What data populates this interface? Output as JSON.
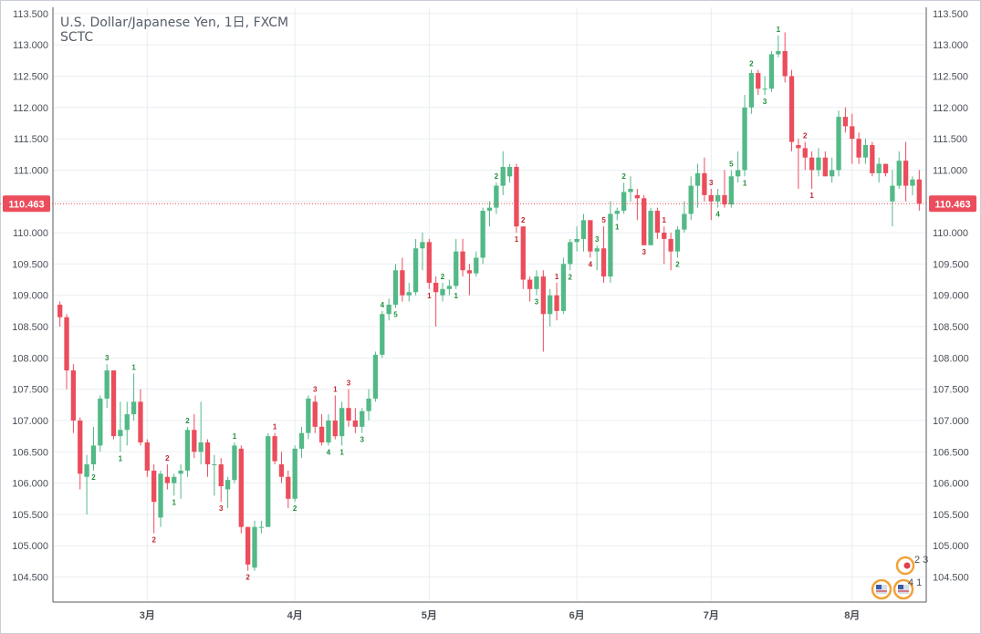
{
  "header": {
    "title": "U.S. Dollar/Japanese Yen, 1日, FXCM",
    "subtitle": "SCTC"
  },
  "colors": {
    "up": "#53b987",
    "down": "#eb4d5c",
    "grid": "#e9edf1",
    "axis": "#555a62",
    "last": "#eb4d5c"
  },
  "chart_data": {
    "type": "candlestick",
    "ylim": [
      104.1,
      113.6
    ],
    "yticks": [
      "104.500",
      "105.000",
      "105.500",
      "106.000",
      "106.500",
      "107.000",
      "107.500",
      "108.000",
      "108.500",
      "109.000",
      "109.500",
      "110.000",
      "110.500",
      "111.000",
      "111.500",
      "112.000",
      "112.500",
      "113.000",
      "113.500"
    ],
    "xticks": [
      {
        "label": "3月",
        "index": 13
      },
      {
        "label": "4月",
        "index": 35
      },
      {
        "label": "5月",
        "index": 55
      },
      {
        "label": "6月",
        "index": 77
      },
      {
        "label": "7月",
        "index": 97
      },
      {
        "label": "8月",
        "index": 118
      }
    ],
    "last_price": "110.463",
    "candles": [
      {
        "o": 108.85,
        "h": 108.9,
        "l": 108.5,
        "c": 108.65
      },
      {
        "o": 108.65,
        "h": 108.7,
        "l": 107.5,
        "c": 107.8
      },
      {
        "o": 107.8,
        "h": 107.9,
        "l": 106.8,
        "c": 107.0
      },
      {
        "o": 107.0,
        "h": 107.05,
        "l": 105.9,
        "c": 106.15
      },
      {
        "o": 106.1,
        "h": 106.45,
        "l": 105.5,
        "c": 106.3
      },
      {
        "o": 106.3,
        "h": 106.9,
        "l": 106.2,
        "c": 106.6
      },
      {
        "o": 106.6,
        "h": 107.4,
        "l": 106.5,
        "c": 107.35
      },
      {
        "o": 107.35,
        "h": 107.9,
        "l": 107.2,
        "c": 107.8
      },
      {
        "o": 107.8,
        "h": 107.8,
        "l": 106.7,
        "c": 106.75
      },
      {
        "o": 106.75,
        "h": 107.3,
        "l": 106.5,
        "c": 106.85
      },
      {
        "o": 106.85,
        "h": 107.3,
        "l": 106.6,
        "c": 107.1
      },
      {
        "o": 107.1,
        "h": 107.75,
        "l": 107.0,
        "c": 107.3
      },
      {
        "o": 107.3,
        "h": 107.5,
        "l": 106.6,
        "c": 106.65
      },
      {
        "o": 106.65,
        "h": 106.7,
        "l": 106.1,
        "c": 106.2
      },
      {
        "o": 106.2,
        "h": 106.3,
        "l": 105.2,
        "c": 105.7
      },
      {
        "o": 105.45,
        "h": 106.2,
        "l": 105.3,
        "c": 106.15
      },
      {
        "o": 106.1,
        "h": 106.3,
        "l": 105.9,
        "c": 106.0
      },
      {
        "o": 106.0,
        "h": 106.15,
        "l": 105.8,
        "c": 106.1
      },
      {
        "o": 106.15,
        "h": 106.3,
        "l": 105.75,
        "c": 106.2
      },
      {
        "o": 106.2,
        "h": 106.9,
        "l": 106.1,
        "c": 106.85
      },
      {
        "o": 106.85,
        "h": 107.1,
        "l": 106.4,
        "c": 106.5
      },
      {
        "o": 106.5,
        "h": 107.3,
        "l": 106.3,
        "c": 106.65
      },
      {
        "o": 106.65,
        "h": 106.7,
        "l": 106.1,
        "c": 106.3
      },
      {
        "o": 106.3,
        "h": 106.45,
        "l": 105.8,
        "c": 106.3
      },
      {
        "o": 106.3,
        "h": 106.4,
        "l": 105.7,
        "c": 105.95
      },
      {
        "o": 105.9,
        "h": 106.1,
        "l": 105.6,
        "c": 106.05
      },
      {
        "o": 106.05,
        "h": 106.65,
        "l": 106.0,
        "c": 106.6
      },
      {
        "o": 106.55,
        "h": 106.6,
        "l": 105.2,
        "c": 105.3
      },
      {
        "o": 105.3,
        "h": 105.3,
        "l": 104.6,
        "c": 104.7
      },
      {
        "o": 104.65,
        "h": 105.4,
        "l": 104.6,
        "c": 105.3
      },
      {
        "o": 105.3,
        "h": 105.4,
        "l": 105.2,
        "c": 105.3
      },
      {
        "o": 105.3,
        "h": 106.8,
        "l": 105.3,
        "c": 106.75
      },
      {
        "o": 106.75,
        "h": 106.8,
        "l": 106.3,
        "c": 106.35
      },
      {
        "o": 106.3,
        "h": 106.5,
        "l": 106.0,
        "c": 106.1
      },
      {
        "o": 106.1,
        "h": 106.2,
        "l": 105.6,
        "c": 105.75
      },
      {
        "o": 105.75,
        "h": 106.6,
        "l": 105.7,
        "c": 106.55
      },
      {
        "o": 106.55,
        "h": 106.9,
        "l": 106.4,
        "c": 106.8
      },
      {
        "o": 106.8,
        "h": 107.4,
        "l": 106.7,
        "c": 107.35
      },
      {
        "o": 107.3,
        "h": 107.4,
        "l": 106.8,
        "c": 106.9
      },
      {
        "o": 106.9,
        "h": 107.1,
        "l": 106.6,
        "c": 106.65
      },
      {
        "o": 106.65,
        "h": 107.1,
        "l": 106.6,
        "c": 107.0
      },
      {
        "o": 107.0,
        "h": 107.4,
        "l": 106.7,
        "c": 106.75
      },
      {
        "o": 106.75,
        "h": 107.3,
        "l": 106.6,
        "c": 107.2
      },
      {
        "o": 107.2,
        "h": 107.5,
        "l": 106.9,
        "c": 107.0
      },
      {
        "o": 107.0,
        "h": 107.2,
        "l": 106.8,
        "c": 106.9
      },
      {
        "o": 106.9,
        "h": 107.2,
        "l": 106.8,
        "c": 107.15
      },
      {
        "o": 107.15,
        "h": 107.5,
        "l": 107.0,
        "c": 107.35
      },
      {
        "o": 107.35,
        "h": 108.1,
        "l": 107.3,
        "c": 108.05
      },
      {
        "o": 108.05,
        "h": 108.75,
        "l": 108.0,
        "c": 108.7
      },
      {
        "o": 108.7,
        "h": 108.95,
        "l": 108.6,
        "c": 108.85
      },
      {
        "o": 108.85,
        "h": 109.5,
        "l": 108.8,
        "c": 109.4
      },
      {
        "o": 109.4,
        "h": 109.6,
        "l": 108.9,
        "c": 109.0
      },
      {
        "o": 109.0,
        "h": 109.2,
        "l": 108.9,
        "c": 109.05
      },
      {
        "o": 109.05,
        "h": 109.9,
        "l": 109.0,
        "c": 109.75
      },
      {
        "o": 109.75,
        "h": 110.0,
        "l": 109.4,
        "c": 109.85
      },
      {
        "o": 109.85,
        "h": 109.9,
        "l": 109.1,
        "c": 109.2
      },
      {
        "o": 109.2,
        "h": 109.3,
        "l": 108.5,
        "c": 109.05
      },
      {
        "o": 109.0,
        "h": 109.2,
        "l": 108.9,
        "c": 109.1
      },
      {
        "o": 109.1,
        "h": 109.25,
        "l": 109.0,
        "c": 109.15
      },
      {
        "o": 109.15,
        "h": 109.9,
        "l": 109.1,
        "c": 109.7
      },
      {
        "o": 109.7,
        "h": 109.9,
        "l": 109.3,
        "c": 109.4
      },
      {
        "o": 109.4,
        "h": 109.5,
        "l": 109.0,
        "c": 109.35
      },
      {
        "o": 109.35,
        "h": 109.7,
        "l": 109.3,
        "c": 109.6
      },
      {
        "o": 109.6,
        "h": 110.4,
        "l": 109.5,
        "c": 110.35
      },
      {
        "o": 110.35,
        "h": 110.5,
        "l": 110.1,
        "c": 110.4
      },
      {
        "o": 110.4,
        "h": 110.8,
        "l": 110.3,
        "c": 110.75
      },
      {
        "o": 110.75,
        "h": 111.3,
        "l": 110.6,
        "c": 111.05
      },
      {
        "o": 110.9,
        "h": 111.1,
        "l": 110.8,
        "c": 111.05
      },
      {
        "o": 111.05,
        "h": 111.1,
        "l": 110.0,
        "c": 110.1
      },
      {
        "o": 110.1,
        "h": 110.1,
        "l": 109.1,
        "c": 109.25
      },
      {
        "o": 109.25,
        "h": 109.3,
        "l": 108.9,
        "c": 109.1
      },
      {
        "o": 109.1,
        "h": 109.4,
        "l": 109.0,
        "c": 109.3
      },
      {
        "o": 109.3,
        "h": 109.4,
        "l": 108.1,
        "c": 108.7
      },
      {
        "o": 108.7,
        "h": 109.1,
        "l": 108.5,
        "c": 109.0
      },
      {
        "o": 109.0,
        "h": 109.2,
        "l": 108.6,
        "c": 108.75
      },
      {
        "o": 108.75,
        "h": 109.6,
        "l": 108.7,
        "c": 109.5
      },
      {
        "o": 109.5,
        "h": 109.9,
        "l": 109.4,
        "c": 109.85
      },
      {
        "o": 109.85,
        "h": 110.1,
        "l": 109.7,
        "c": 109.9
      },
      {
        "o": 109.9,
        "h": 110.3,
        "l": 109.7,
        "c": 110.2
      },
      {
        "o": 110.2,
        "h": 110.2,
        "l": 109.6,
        "c": 109.7
      },
      {
        "o": 109.7,
        "h": 109.8,
        "l": 109.4,
        "c": 109.75
      },
      {
        "o": 109.75,
        "h": 110.1,
        "l": 109.2,
        "c": 109.3
      },
      {
        "o": 109.3,
        "h": 110.5,
        "l": 109.2,
        "c": 110.3
      },
      {
        "o": 110.3,
        "h": 110.4,
        "l": 110.2,
        "c": 110.35
      },
      {
        "o": 110.35,
        "h": 110.8,
        "l": 110.3,
        "c": 110.65
      },
      {
        "o": 110.65,
        "h": 110.9,
        "l": 110.5,
        "c": 110.7
      },
      {
        "o": 110.6,
        "h": 110.7,
        "l": 110.2,
        "c": 110.55
      },
      {
        "o": 110.55,
        "h": 110.6,
        "l": 109.8,
        "c": 109.8
      },
      {
        "o": 109.8,
        "h": 110.4,
        "l": 109.8,
        "c": 110.35
      },
      {
        "o": 110.35,
        "h": 110.4,
        "l": 109.9,
        "c": 110.0
      },
      {
        "o": 110.0,
        "h": 110.1,
        "l": 109.5,
        "c": 109.9
      },
      {
        "o": 109.9,
        "h": 110.0,
        "l": 109.4,
        "c": 109.7
      },
      {
        "o": 109.7,
        "h": 110.1,
        "l": 109.6,
        "c": 110.05
      },
      {
        "o": 110.05,
        "h": 110.5,
        "l": 110.0,
        "c": 110.3
      },
      {
        "o": 110.3,
        "h": 110.9,
        "l": 110.2,
        "c": 110.75
      },
      {
        "o": 110.75,
        "h": 111.1,
        "l": 110.4,
        "c": 110.95
      },
      {
        "o": 110.95,
        "h": 111.2,
        "l": 110.5,
        "c": 110.6
      },
      {
        "o": 110.6,
        "h": 110.7,
        "l": 110.2,
        "c": 110.5
      },
      {
        "o": 110.5,
        "h": 110.7,
        "l": 110.4,
        "c": 110.6
      },
      {
        "o": 110.6,
        "h": 111.0,
        "l": 110.4,
        "c": 110.45
      },
      {
        "o": 110.45,
        "h": 111.0,
        "l": 110.4,
        "c": 110.9
      },
      {
        "o": 110.9,
        "h": 111.3,
        "l": 110.8,
        "c": 111.0
      },
      {
        "o": 111.0,
        "h": 112.2,
        "l": 110.9,
        "c": 112.0
      },
      {
        "o": 112.0,
        "h": 112.6,
        "l": 111.9,
        "c": 112.55
      },
      {
        "o": 112.55,
        "h": 112.6,
        "l": 112.2,
        "c": 112.3
      },
      {
        "o": 112.3,
        "h": 112.5,
        "l": 112.2,
        "c": 112.3
      },
      {
        "o": 112.3,
        "h": 112.9,
        "l": 112.25,
        "c": 112.85
      },
      {
        "o": 112.85,
        "h": 113.15,
        "l": 112.8,
        "c": 112.9
      },
      {
        "o": 112.9,
        "h": 113.2,
        "l": 112.4,
        "c": 112.5
      },
      {
        "o": 112.5,
        "h": 112.6,
        "l": 111.3,
        "c": 111.45
      },
      {
        "o": 111.4,
        "h": 111.5,
        "l": 110.7,
        "c": 111.35
      },
      {
        "o": 111.35,
        "h": 111.45,
        "l": 111.0,
        "c": 111.2
      },
      {
        "o": 111.2,
        "h": 111.3,
        "l": 110.7,
        "c": 111.0
      },
      {
        "o": 111.0,
        "h": 111.35,
        "l": 110.9,
        "c": 111.2
      },
      {
        "o": 111.2,
        "h": 111.3,
        "l": 110.9,
        "c": 110.9
      },
      {
        "o": 110.9,
        "h": 111.2,
        "l": 110.8,
        "c": 111.0
      },
      {
        "o": 111.0,
        "h": 111.95,
        "l": 110.9,
        "c": 111.85
      },
      {
        "o": 111.85,
        "h": 112.0,
        "l": 111.6,
        "c": 111.7
      },
      {
        "o": 111.7,
        "h": 111.9,
        "l": 111.1,
        "c": 111.5
      },
      {
        "o": 111.5,
        "h": 111.6,
        "l": 111.1,
        "c": 111.2
      },
      {
        "o": 111.2,
        "h": 111.5,
        "l": 111.1,
        "c": 111.4
      },
      {
        "o": 111.4,
        "h": 111.45,
        "l": 110.9,
        "c": 110.95
      },
      {
        "o": 110.95,
        "h": 111.2,
        "l": 110.8,
        "c": 111.1
      },
      {
        "o": 111.1,
        "h": 111.1,
        "l": 110.9,
        "c": 110.95
      },
      {
        "o": 110.5,
        "h": 111.0,
        "l": 110.1,
        "c": 110.75
      },
      {
        "o": 110.75,
        "h": 111.3,
        "l": 110.7,
        "c": 111.15
      },
      {
        "o": 111.15,
        "h": 111.45,
        "l": 110.5,
        "c": 110.75
      },
      {
        "o": 110.75,
        "h": 110.9,
        "l": 110.6,
        "c": 110.85
      },
      {
        "o": 110.85,
        "h": 111.0,
        "l": 110.35,
        "c": 110.463
      }
    ],
    "markers": [
      {
        "i": 7,
        "t": "3",
        "pos": "above"
      },
      {
        "i": 5,
        "t": "2",
        "pos": "below"
      },
      {
        "i": 9,
        "t": "1",
        "pos": "below"
      },
      {
        "i": 11,
        "t": "1",
        "pos": "above"
      },
      {
        "i": 14,
        "t": "2",
        "pos": "below"
      },
      {
        "i": 16,
        "t": "2",
        "pos": "above"
      },
      {
        "i": 17,
        "t": "1",
        "pos": "below"
      },
      {
        "i": 19,
        "t": "2",
        "pos": "above"
      },
      {
        "i": 24,
        "t": "3",
        "pos": "below"
      },
      {
        "i": 26,
        "t": "1",
        "pos": "above"
      },
      {
        "i": 28,
        "t": "2",
        "pos": "below"
      },
      {
        "i": 32,
        "t": "1",
        "pos": "above"
      },
      {
        "i": 35,
        "t": "2",
        "pos": "below"
      },
      {
        "i": 38,
        "t": "3",
        "pos": "above"
      },
      {
        "i": 40,
        "t": "4",
        "pos": "below"
      },
      {
        "i": 41,
        "t": "1",
        "pos": "above"
      },
      {
        "i": 42,
        "t": "1",
        "pos": "below"
      },
      {
        "i": 43,
        "t": "3",
        "pos": "above"
      },
      {
        "i": 45,
        "t": "3",
        "pos": "below"
      },
      {
        "i": 48,
        "t": "4",
        "pos": "above"
      },
      {
        "i": 50,
        "t": "5",
        "pos": "below"
      },
      {
        "i": 55,
        "t": "1",
        "pos": "below"
      },
      {
        "i": 57,
        "t": "2",
        "pos": "above"
      },
      {
        "i": 59,
        "t": "1",
        "pos": "below"
      },
      {
        "i": 65,
        "t": "2",
        "pos": "above"
      },
      {
        "i": 69,
        "t": "2",
        "pos": "above"
      },
      {
        "i": 68,
        "t": "1",
        "pos": "below"
      },
      {
        "i": 71,
        "t": "3",
        "pos": "below"
      },
      {
        "i": 74,
        "t": "1",
        "pos": "above"
      },
      {
        "i": 76,
        "t": "2",
        "pos": "below"
      },
      {
        "i": 79,
        "t": "4",
        "pos": "below"
      },
      {
        "i": 80,
        "t": "3",
        "pos": "above"
      },
      {
        "i": 81,
        "t": "5",
        "pos": "above"
      },
      {
        "i": 83,
        "t": "1",
        "pos": "below"
      },
      {
        "i": 84,
        "t": "2",
        "pos": "above"
      },
      {
        "i": 87,
        "t": "3",
        "pos": "below"
      },
      {
        "i": 90,
        "t": "1",
        "pos": "above"
      },
      {
        "i": 92,
        "t": "2",
        "pos": "below"
      },
      {
        "i": 97,
        "t": "3",
        "pos": "above"
      },
      {
        "i": 98,
        "t": "4",
        "pos": "below"
      },
      {
        "i": 100,
        "t": "5",
        "pos": "above"
      },
      {
        "i": 102,
        "t": "1",
        "pos": "below"
      },
      {
        "i": 103,
        "t": "2",
        "pos": "above"
      },
      {
        "i": 105,
        "t": "3",
        "pos": "below"
      },
      {
        "i": 107,
        "t": "1",
        "pos": "above"
      },
      {
        "i": 111,
        "t": "2",
        "pos": "above"
      },
      {
        "i": 112,
        "t": "1",
        "pos": "below"
      }
    ],
    "badges": [
      "2",
      "3",
      "4",
      "1"
    ]
  }
}
